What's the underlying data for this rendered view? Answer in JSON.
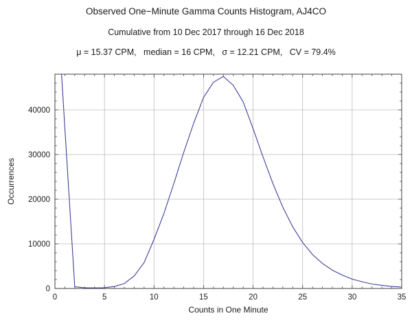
{
  "chart_data": {
    "type": "line",
    "title": "Observed One−Minute Gamma Counts Histogram, AJ4CO",
    "subtitle": "Cumulative from 10 Dec 2017 through 16 Dec 2018",
    "stats_line": "μ = 15.37 CPM,   median = 16 CPM,   σ = 12.21 CPM,   CV = 79.4%",
    "xlabel": "Counts in One Minute",
    "ylabel": "Occurrences",
    "xlim": [
      0,
      35
    ],
    "ylim": [
      0,
      48000
    ],
    "x_ticks": [
      0,
      5,
      10,
      15,
      20,
      25,
      30,
      35
    ],
    "y_ticks": [
      0,
      10000,
      20000,
      30000,
      40000
    ],
    "x_minor_step": 1,
    "y_minor_step": 2000,
    "grid": true,
    "legend": "none",
    "line_color": "#3f3d99",
    "grid_color": "#bbbbbb",
    "frame_color": "#404040",
    "series": [
      {
        "name": "occurrences",
        "points": [
          [
            0,
            72000
          ],
          [
            1,
            36000
          ],
          [
            2,
            400
          ],
          [
            3,
            150
          ],
          [
            4,
            120
          ],
          [
            5,
            160
          ],
          [
            6,
            450
          ],
          [
            7,
            1100
          ],
          [
            8,
            2800
          ],
          [
            9,
            5800
          ],
          [
            10,
            11000
          ],
          [
            11,
            16800
          ],
          [
            12,
            23500
          ],
          [
            13,
            30500
          ],
          [
            14,
            37000
          ],
          [
            15,
            42800
          ],
          [
            16,
            46200
          ],
          [
            17,
            47500
          ],
          [
            18,
            45500
          ],
          [
            19,
            41800
          ],
          [
            20,
            35800
          ],
          [
            21,
            29500
          ],
          [
            22,
            23500
          ],
          [
            23,
            18200
          ],
          [
            24,
            13800
          ],
          [
            25,
            10300
          ],
          [
            26,
            7600
          ],
          [
            27,
            5600
          ],
          [
            28,
            4100
          ],
          [
            29,
            3000
          ],
          [
            30,
            2100
          ],
          [
            31,
            1500
          ],
          [
            32,
            1000
          ],
          [
            33,
            700
          ],
          [
            34,
            450
          ],
          [
            35,
            300
          ]
        ]
      }
    ]
  }
}
